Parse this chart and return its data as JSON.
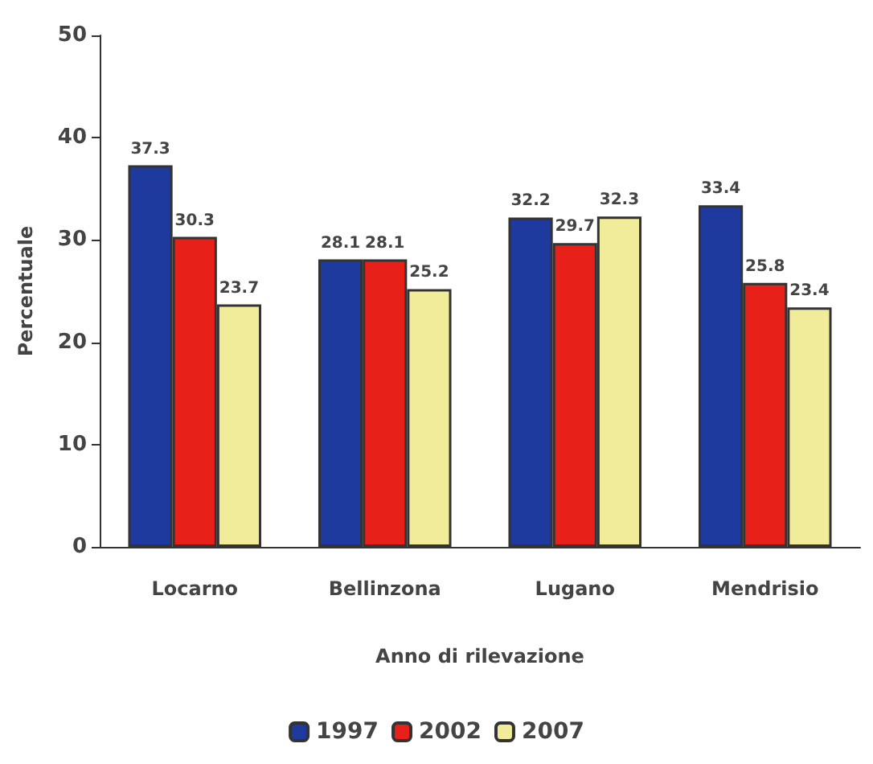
{
  "chart_data": {
    "type": "bar",
    "xlabel": "Anno di rilevazione",
    "ylabel": "Percentuale",
    "categories": [
      "Locarno",
      "Bellinzona",
      "Lugano",
      "Mendrisio"
    ],
    "series": [
      {
        "name": "1997",
        "color": "#1f3a9e",
        "values": [
          37.3,
          28.1,
          32.2,
          33.4
        ]
      },
      {
        "name": "2002",
        "color": "#e8201a",
        "values": [
          30.3,
          28.1,
          29.7,
          25.8
        ]
      },
      {
        "name": "2007",
        "color": "#f0ec9a",
        "values": [
          23.7,
          25.2,
          32.3,
          23.4
        ]
      }
    ],
    "ylim": [
      0,
      50
    ],
    "yticks": [
      0,
      10,
      20,
      30,
      40,
      50
    ],
    "grid": false,
    "legend": "bottom",
    "data_labels": true
  }
}
